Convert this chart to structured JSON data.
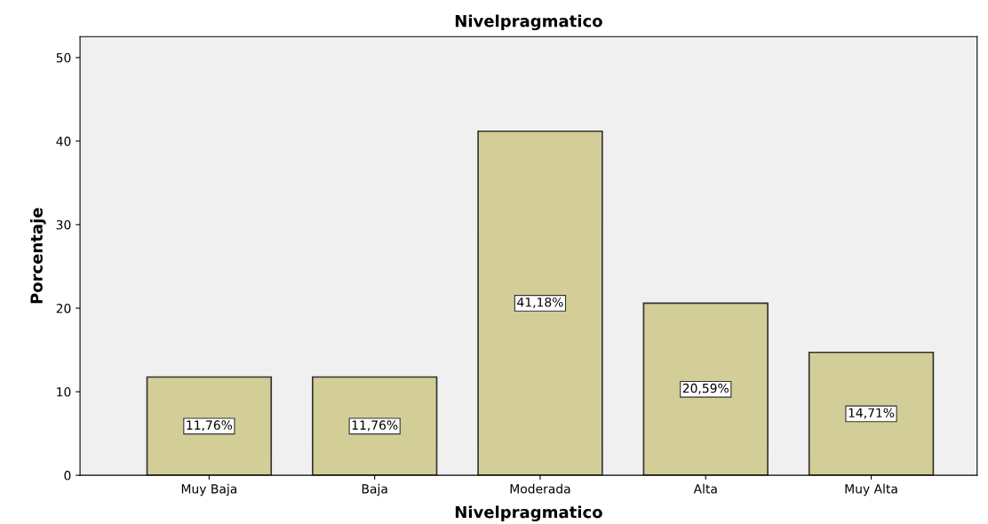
{
  "chart_data": {
    "type": "bar",
    "title": "Nivelpragmatico",
    "xlabel": "Nivelpragmatico",
    "ylabel": "Porcentaje",
    "categories": [
      "Muy Baja",
      "Baja",
      "Moderada",
      "Alta",
      "Muy Alta"
    ],
    "values": [
      11.76,
      11.76,
      41.18,
      20.59,
      14.71
    ],
    "value_labels": [
      "11,76%",
      "11,76%",
      "41,18%",
      "20,59%",
      "14,71%"
    ],
    "color": "#d3ce97",
    "ylim": [
      0,
      52.5
    ],
    "yticks": [
      0,
      10,
      20,
      30,
      40,
      50
    ],
    "grid": false
  }
}
